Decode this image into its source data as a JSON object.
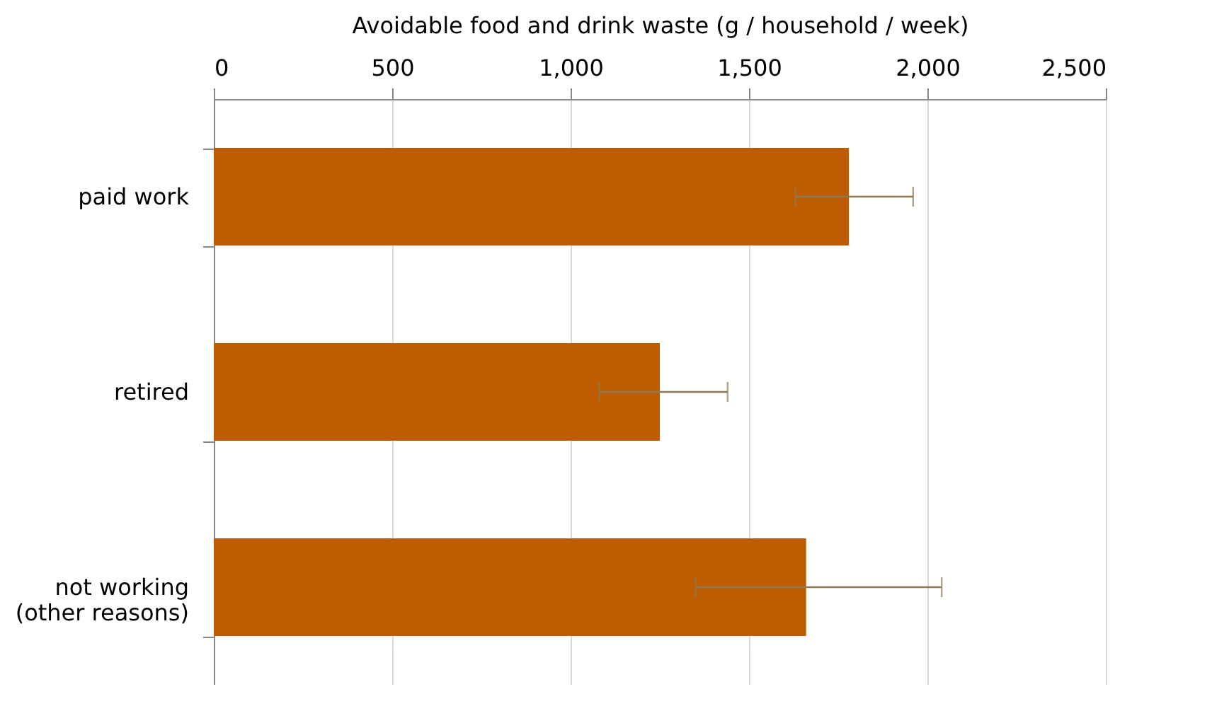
{
  "chart_data": {
    "type": "bar",
    "orientation": "horizontal",
    "xlabel": "Avoidable food and drink waste (g / household / week)",
    "categories": [
      "paid work",
      "retired",
      "not working\n(other reasons)"
    ],
    "values": [
      1780,
      1250,
      1660
    ],
    "errors": [
      [
        1630,
        1960
      ],
      [
        1080,
        1440
      ],
      [
        1350,
        2040
      ]
    ],
    "color": "#bf5b00",
    "xlim": [
      0,
      2500
    ],
    "xticks": [
      0,
      500,
      {
        "value": 1000,
        "label": "1,000"
      },
      {
        "value": 1500,
        "label": "1,500"
      },
      {
        "value": 2000,
        "label": "2,000"
      },
      {
        "value": 2500,
        "label": "2,500"
      }
    ],
    "grid": "x"
  }
}
